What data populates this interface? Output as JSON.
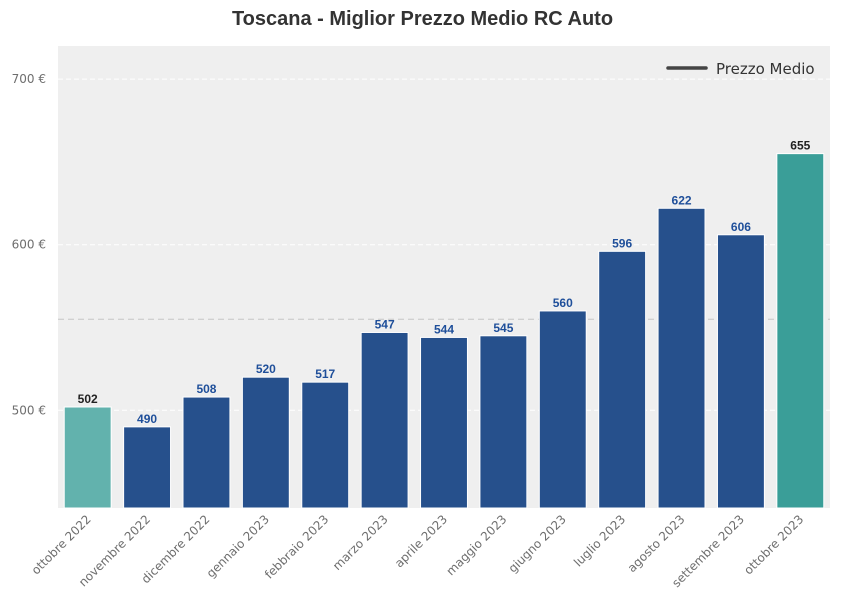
{
  "chart_data": {
    "type": "bar",
    "title": "Toscana - Miglior Prezzo Medio RC Auto",
    "categories": [
      "ottobre 2022",
      "novembre 2022",
      "dicembre 2022",
      "gennaio 2023",
      "febbraio 2023",
      "marzo 2023",
      "aprile 2023",
      "maggio 2023",
      "giugno 2023",
      "luglio 2023",
      "agosto 2023",
      "settembre 2023",
      "ottobre 2023"
    ],
    "values": [
      502,
      490,
      508,
      520,
      517,
      547,
      544,
      545,
      560,
      596,
      622,
      606,
      655
    ],
    "ylim": [
      441,
      720
    ],
    "yticks": [
      500,
      600,
      700
    ],
    "ytick_labels": [
      "500 €",
      "600 €",
      "700 €"
    ],
    "mean_line": 555,
    "legend": {
      "label": "Prezzo Medio",
      "placement": "top-right"
    },
    "grid": true,
    "colors": {
      "first_bar": "#62b2ad",
      "middle_bars": "#26508c",
      "last_bar": "#3a9e98",
      "first_label": "#222222",
      "middle_labels": "#1f4f9a",
      "last_label": "#222222",
      "plot_bg": "#efefef",
      "mean_line": "#c6c6c6",
      "legend_line": "#444444"
    }
  }
}
